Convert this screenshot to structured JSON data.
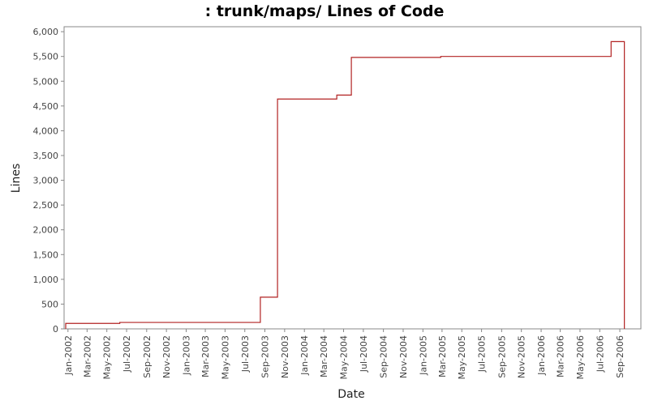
{
  "chart_data": {
    "type": "line",
    "step": true,
    "title": ": trunk/maps/ Lines of Code",
    "xlabel": "Date",
    "ylabel": "Lines",
    "ylim": [
      0,
      6100
    ],
    "xlim": [
      "2001-12-20",
      "2006-11-05"
    ],
    "y_ticks": [
      0,
      500,
      1000,
      1500,
      2000,
      2500,
      3000,
      3500,
      4000,
      4500,
      5000,
      5500,
      6000
    ],
    "y_tick_labels": [
      "0",
      "500",
      "1,000",
      "1,500",
      "2,000",
      "2,500",
      "3,000",
      "3,500",
      "4,000",
      "4,500",
      "5,000",
      "5,500",
      "6,000"
    ],
    "x_ticks": [
      "2002-01-01",
      "2002-03-01",
      "2002-05-01",
      "2002-07-01",
      "2002-09-01",
      "2002-11-01",
      "2003-01-01",
      "2003-03-01",
      "2003-05-01",
      "2003-07-01",
      "2003-09-01",
      "2003-11-01",
      "2004-01-01",
      "2004-03-01",
      "2004-05-01",
      "2004-07-01",
      "2004-09-01",
      "2004-11-01",
      "2005-01-01",
      "2005-03-01",
      "2005-05-01",
      "2005-07-01",
      "2005-09-01",
      "2005-11-01",
      "2006-01-01",
      "2006-03-01",
      "2006-05-01",
      "2006-07-01",
      "2006-09-01"
    ],
    "x_tick_labels": [
      "Jan-2002",
      "Mar-2002",
      "May-2002",
      "Jul-2002",
      "Sep-2002",
      "Nov-2002",
      "Jan-2003",
      "Mar-2003",
      "May-2003",
      "Jul-2003",
      "Sep-2003",
      "Nov-2003",
      "Jan-2004",
      "Mar-2004",
      "May-2004",
      "Jul-2004",
      "Sep-2004",
      "Nov-2004",
      "Jan-2005",
      "Mar-2005",
      "May-2005",
      "Jul-2005",
      "Sep-2005",
      "Nov-2005",
      "Jan-2006",
      "Mar-2006",
      "May-2006",
      "Jul-2006",
      "Sep-2006"
    ],
    "grid": false,
    "series_color": "#b22222",
    "series": [
      {
        "points": [
          {
            "x": "2001-12-25",
            "y": 0
          },
          {
            "x": "2001-12-25",
            "y": 110
          },
          {
            "x": "2002-06-10",
            "y": 110
          },
          {
            "x": "2002-06-10",
            "y": 130
          },
          {
            "x": "2003-08-18",
            "y": 130
          },
          {
            "x": "2003-08-18",
            "y": 640
          },
          {
            "x": "2003-10-10",
            "y": 640
          },
          {
            "x": "2003-10-10",
            "y": 4640
          },
          {
            "x": "2004-04-10",
            "y": 4640
          },
          {
            "x": "2004-04-10",
            "y": 4720
          },
          {
            "x": "2004-05-25",
            "y": 4720
          },
          {
            "x": "2004-05-25",
            "y": 5480
          },
          {
            "x": "2005-02-25",
            "y": 5480
          },
          {
            "x": "2005-02-25",
            "y": 5500
          },
          {
            "x": "2006-08-05",
            "y": 5500
          },
          {
            "x": "2006-08-05",
            "y": 5800
          },
          {
            "x": "2006-09-15",
            "y": 5800
          },
          {
            "x": "2006-09-15",
            "y": 0
          }
        ]
      }
    ]
  }
}
